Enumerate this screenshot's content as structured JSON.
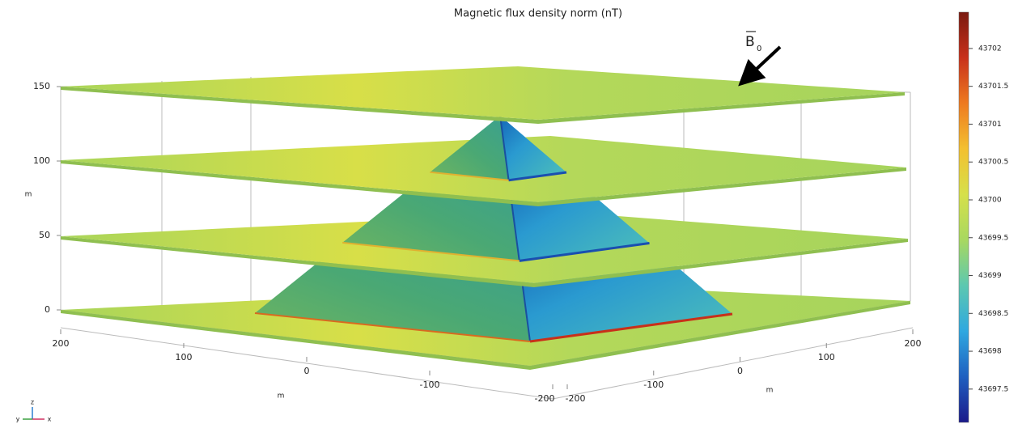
{
  "chart_data": {
    "type": "surface3d",
    "title": "Magnetic flux density norm (nT)",
    "zlabel": "m",
    "xlabel": "m",
    "ylabel": "m",
    "zlim": [
      0,
      150
    ],
    "zticks": [
      0,
      50,
      100,
      150
    ],
    "ylim": [
      200,
      -200
    ],
    "yticks": [
      200,
      100,
      0,
      -100,
      -200
    ],
    "xlim": [
      -200,
      200
    ],
    "xticks": [
      -200,
      -100,
      0,
      100,
      200
    ],
    "clim": [
      43697.06,
      43702.48
    ],
    "cticks": [
      43697.5,
      43698,
      43698.5,
      43699,
      43699.5,
      43700,
      43700.5,
      43701,
      43701.5,
      43702
    ],
    "colormap": [
      "#1a1a8a",
      "#1f5fc0",
      "#2fa8e0",
      "#5cc8b0",
      "#a8d860",
      "#d6e04a",
      "#f3c030",
      "#ee7a20",
      "#c8301a",
      "#7a1a10"
    ],
    "annotation": {
      "text": "B",
      "subscript": "0"
    },
    "triad": [
      "z",
      "y",
      "x"
    ]
  }
}
